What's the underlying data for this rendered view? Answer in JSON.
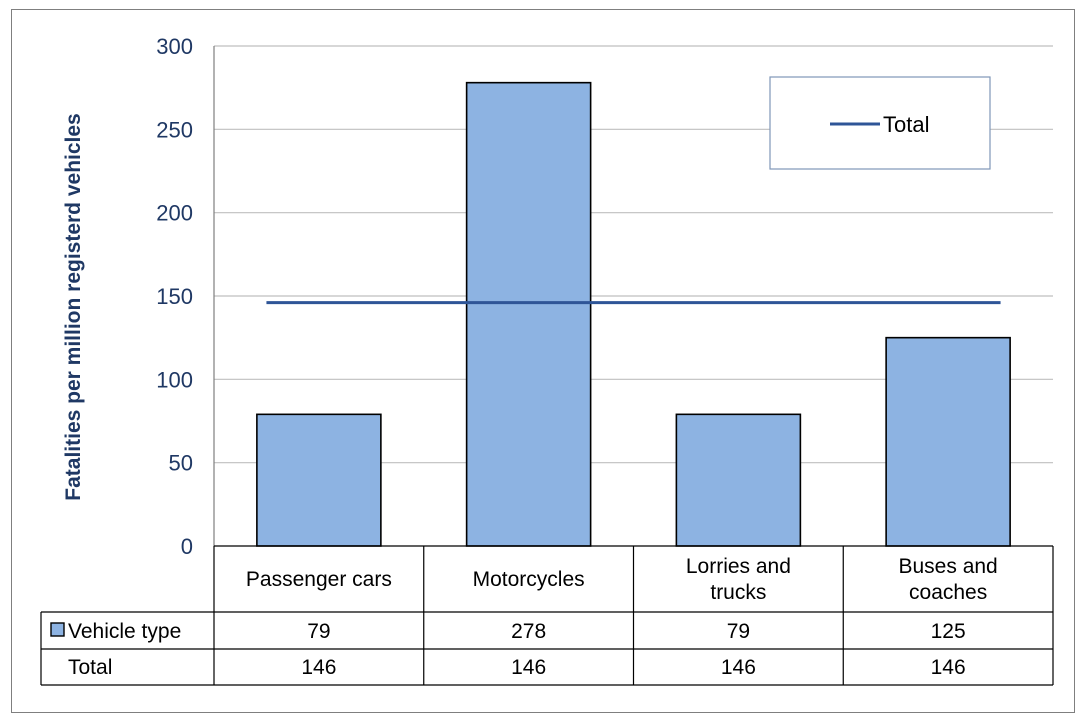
{
  "chart_data": {
    "type": "bar",
    "ylabel": "Fatalities per million registerd vehicles",
    "ylim": [
      0,
      300
    ],
    "yticks": [
      0,
      50,
      100,
      150,
      200,
      250,
      300
    ],
    "categories": [
      "Passenger cars",
      "Motorcycles",
      "Lorries and trucks",
      "Buses and coaches"
    ],
    "category_lines": [
      [
        "Passenger cars"
      ],
      [
        "Motorcycles"
      ],
      [
        "Lorries and",
        "trucks"
      ],
      [
        "Buses and",
        "coaches"
      ]
    ],
    "series": [
      {
        "name": "Vehicle type",
        "kind": "bar",
        "color": "#8db3e2",
        "values": [
          79,
          278,
          79,
          125
        ]
      },
      {
        "name": "Total",
        "kind": "line",
        "color": "#2e5597",
        "values": [
          146,
          146,
          146,
          146
        ]
      }
    ],
    "legend": {
      "position": "top-right",
      "entries": [
        "Total"
      ]
    },
    "data_table": true,
    "grid": true
  }
}
